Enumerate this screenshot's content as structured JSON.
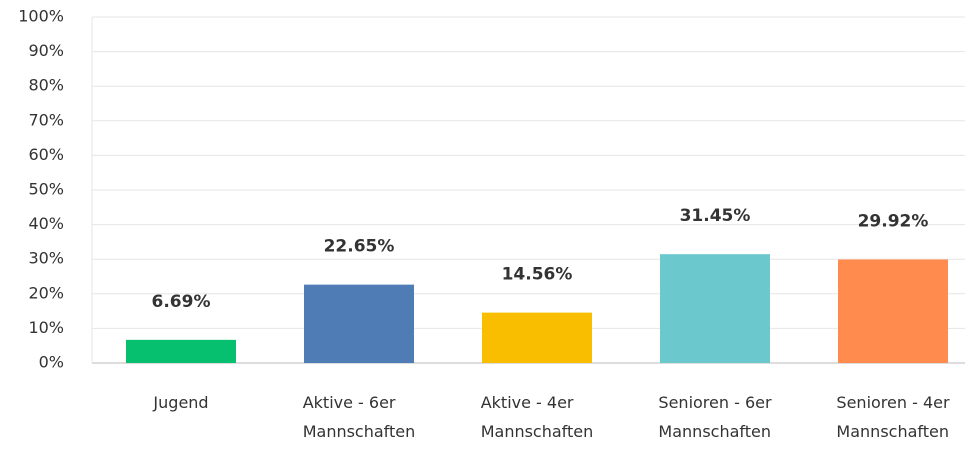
{
  "chart_data": {
    "type": "bar",
    "categories": [
      "Jugend",
      "Aktive - 6er Mannschaften",
      "Aktive - 4er Mannschaften",
      "Senioren - 6er Mannschaften",
      "Senioren - 4er Mannschaften"
    ],
    "values": [
      6.69,
      22.65,
      14.56,
      31.45,
      29.92
    ],
    "value_labels": [
      "6.69%",
      "22.65%",
      "14.56%",
      "31.45%",
      "29.92%"
    ],
    "colors": [
      "#06bf6f",
      "#507cb6",
      "#f9be00",
      "#6bc8cd",
      "#ff8b4f"
    ],
    "ylim": [
      0,
      100
    ],
    "yticks": [
      {
        "value": 0,
        "label": "0%"
      },
      {
        "value": 10,
        "label": "10%"
      },
      {
        "value": 20,
        "label": "20%"
      },
      {
        "value": 30,
        "label": "30%"
      },
      {
        "value": 40,
        "label": "40%"
      },
      {
        "value": 50,
        "label": "50%"
      },
      {
        "value": 60,
        "label": "60%"
      },
      {
        "value": 70,
        "label": "70%"
      },
      {
        "value": 80,
        "label": "80%"
      },
      {
        "value": 90,
        "label": "90%"
      },
      {
        "value": 100,
        "label": "100%"
      }
    ],
    "grid": true
  }
}
